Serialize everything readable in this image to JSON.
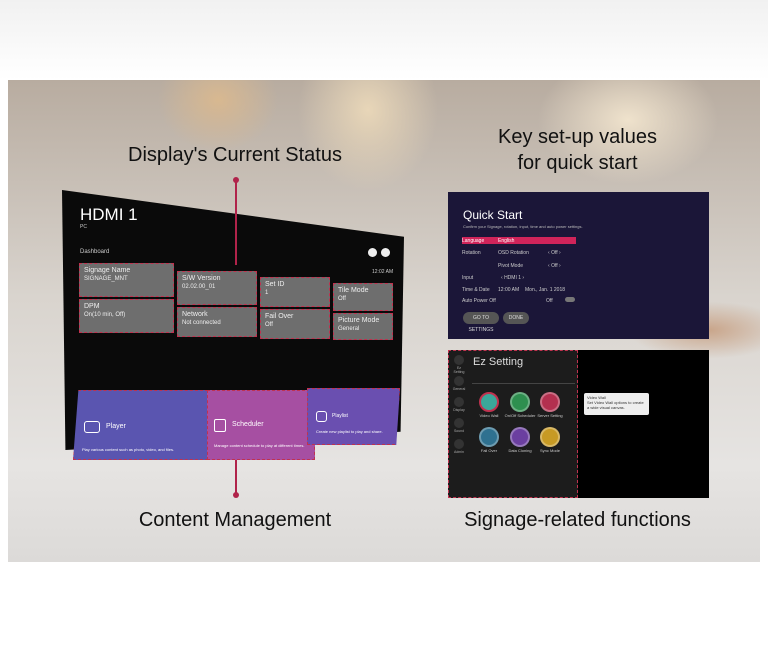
{
  "headings": {
    "status": "Display's Current Status",
    "quickstart_line1": "Key set-up values",
    "quickstart_line2": "for quick start",
    "content": "Content Management",
    "signage": "Signage-related functions"
  },
  "accent": "#b0234a",
  "dashboard": {
    "input": "HDMI 1",
    "input_sub": "PC",
    "section": "Dashboard",
    "time": "12:02 AM",
    "tiles": [
      {
        "label": "Signage Name",
        "value": "SIGNAGE_MNT",
        "icon": "signage-icon"
      },
      {
        "label": "S/W Version",
        "value": "02.02.00_01",
        "icon": "cloud-icon"
      },
      {
        "label": "Set ID",
        "value": "1",
        "icon": "id-icon"
      },
      {
        "label": "Tile Mode",
        "value": "Off",
        "icon": "tile-icon"
      },
      {
        "label": "DPM",
        "value": "On(10 min, Off)",
        "icon": "power-icon"
      },
      {
        "label": "Network",
        "value": "Not connected",
        "icon": "wifi-icon"
      },
      {
        "label": "Fail Over",
        "value": "Off",
        "icon": "failover-icon"
      },
      {
        "label": "Picture Mode",
        "value": "General",
        "icon": "picture-icon"
      }
    ]
  },
  "apps": [
    {
      "name": "Player",
      "desc": "Play various content such as photo, video, and files.",
      "color": "#5a55b0",
      "icon": "video-camera-icon"
    },
    {
      "name": "Scheduler",
      "desc": "Manage content schedule to play at different times.",
      "color": "#a64fa2",
      "icon": "calendar-clock-icon"
    },
    {
      "name": "Playlist",
      "desc": "Create new playlist to play and share.",
      "color": "#6a4fb0",
      "icon": "playlist-icon"
    }
  ],
  "quickstart": {
    "title": "Quick Start",
    "subtitle": "Confirm your Signage, rotation, input, time and auto power settings.",
    "rows": [
      {
        "label": "Language",
        "value": "English"
      },
      {
        "label": "Rotation",
        "value": "OSD Rotation",
        "setting": "Off"
      },
      {
        "label": "",
        "value": "Pivot Mode",
        "setting": "Off"
      },
      {
        "label": "Input",
        "value": "HDMI 1"
      },
      {
        "label": "Time & Date",
        "value": "12:00 AM",
        "extra": "Mon., Jan. 1 2018"
      },
      {
        "label": "Auto Power Off",
        "value": "Off"
      }
    ],
    "buttons": [
      "GO TO SETTINGS",
      "DONE"
    ]
  },
  "ezsetting": {
    "title": "Ez Setting",
    "sidebar": [
      "Ez Setting",
      "General",
      "Display",
      "Sound",
      "Admin"
    ],
    "items": [
      {
        "label": "Video Wall",
        "color": "#3aa79a"
      },
      {
        "label": "On/Off Scheduler",
        "color": "#2e8f4f"
      },
      {
        "label": "Server Setting",
        "color": "#b3304f"
      },
      {
        "label": "Fail Over",
        "color": "#2f7190"
      },
      {
        "label": "Data Cloning",
        "color": "#6b3fa0"
      },
      {
        "label": "Sync Mode",
        "color": "#c79a24"
      }
    ],
    "tooltip": {
      "title": "Video Wall",
      "text": "Set Video Wall options to create a wide visual canvas."
    }
  }
}
